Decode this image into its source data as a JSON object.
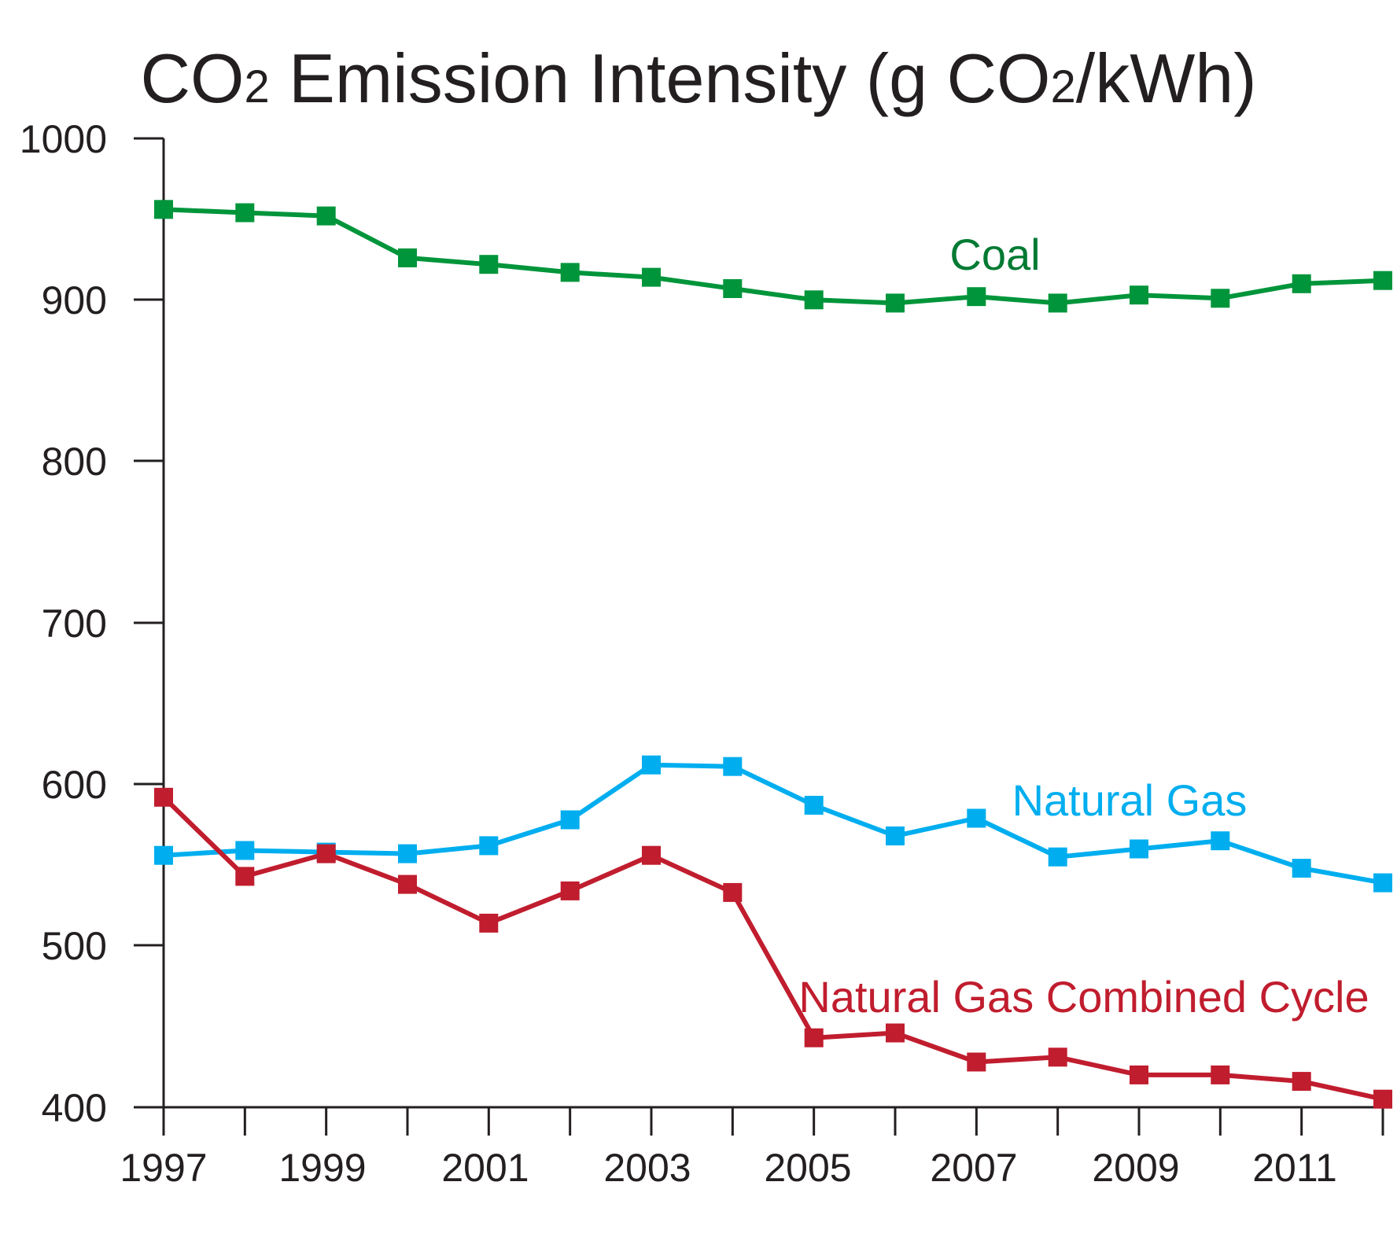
{
  "chart_data": {
    "type": "line",
    "title": "CO₂ Emission Intensity (g CO₂/kWh)",
    "title_parts": [
      "CO",
      "2",
      " Emission Intensity (g CO",
      "2",
      "/kWh)"
    ],
    "xlabel": "",
    "ylabel": "",
    "x": [
      1997,
      1998,
      1999,
      2000,
      2001,
      2002,
      2003,
      2004,
      2005,
      2006,
      2007,
      2008,
      2009,
      2010,
      2011,
      2012
    ],
    "x_tick_labels": [
      "1997",
      "1999",
      "2001",
      "2003",
      "2005",
      "2007",
      "2009",
      "2011"
    ],
    "y_tick_labels": [
      "1000",
      "900",
      "800",
      "700",
      "600",
      "500",
      "400"
    ],
    "yticks": [
      1000,
      900,
      800,
      700,
      600,
      500,
      400
    ],
    "ylim": [
      400,
      1000
    ],
    "xlim": [
      1997,
      2012
    ],
    "grid": false,
    "series": [
      {
        "name": "Coal",
        "color": "#00953b",
        "label_color": "#007a33",
        "values": [
          956,
          954,
          952,
          926,
          922,
          917,
          914,
          907,
          900,
          898,
          902,
          898,
          903,
          901,
          910,
          912
        ]
      },
      {
        "name": "Natural Gas",
        "color": "#00aeef",
        "label_color": "#00aeef",
        "values": [
          556,
          559,
          558,
          557,
          562,
          578,
          612,
          611,
          587,
          568,
          579,
          555,
          560,
          565,
          548,
          539
        ]
      },
      {
        "name": "Natural Gas Combined Cycle",
        "color": "#c01d2e",
        "label_color": "#c01d2e",
        "values": [
          592,
          543,
          557,
          538,
          514,
          534,
          556,
          533,
          443,
          446,
          428,
          431,
          420,
          420,
          416,
          405
        ]
      }
    ]
  }
}
